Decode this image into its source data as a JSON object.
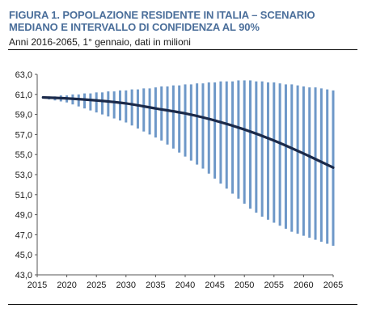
{
  "header": {
    "title": "FIGURA 1. POPOLAZIONE RESIDENTE IN ITALIA – SCENARIO MEDIANO E INTERVALLO DI CONFIDENZA AL 90%",
    "subtitle": "Anni 2016-2065, 1° gennaio, dati in milioni"
  },
  "colors": {
    "median_line": "#1b2a4a",
    "interval_bar": "#6e98c8",
    "title_text": "#4a6e9a"
  },
  "chart_data": {
    "type": "line",
    "title": "FIGURA 1. POPOLAZIONE RESIDENTE IN ITALIA – SCENARIO MEDIANO E INTERVALLO DI CONFIDENZA AL 90%",
    "subtitle": "Anni 2016-2065, 1° gennaio, dati in milioni",
    "xlabel": "",
    "ylabel": "",
    "xlim": [
      2015,
      2065
    ],
    "ylim": [
      43.0,
      63.0
    ],
    "x_ticks": [
      "2015",
      "2020",
      "2025",
      "2030",
      "2035",
      "2040",
      "2045",
      "2050",
      "2055",
      "2060",
      "2065"
    ],
    "y_ticks": [
      "43,0",
      "45,0",
      "47,0",
      "49,0",
      "51,0",
      "53,0",
      "55,0",
      "57,0",
      "59,0",
      "61,0",
      "63,0"
    ],
    "grid": false,
    "legend": "none",
    "series": [
      {
        "kind": "line",
        "x": [
          2016,
          2020,
          2025,
          2030,
          2035,
          2040,
          2045,
          2050,
          2055,
          2060,
          2065
        ],
        "values": [
          60.7,
          60.6,
          60.4,
          60.1,
          59.6,
          59.1,
          58.4,
          57.5,
          56.4,
          55.1,
          53.7
        ]
      },
      {
        "kind": "interval",
        "x": [
          2016,
          2017,
          2018,
          2019,
          2020,
          2021,
          2022,
          2023,
          2024,
          2025,
          2026,
          2027,
          2028,
          2029,
          2030,
          2031,
          2032,
          2033,
          2034,
          2035,
          2036,
          2037,
          2038,
          2039,
          2040,
          2041,
          2042,
          2043,
          2044,
          2045,
          2046,
          2047,
          2048,
          2049,
          2050,
          2051,
          2052,
          2053,
          2054,
          2055,
          2056,
          2057,
          2058,
          2059,
          2060,
          2061,
          2062,
          2063,
          2064,
          2065
        ],
        "low": [
          60.6,
          60.5,
          60.4,
          60.3,
          60.2,
          60.0,
          59.8,
          59.6,
          59.4,
          59.2,
          59.0,
          58.8,
          58.6,
          58.4,
          58.2,
          57.9,
          57.6,
          57.3,
          57.0,
          56.7,
          56.4,
          56.0,
          55.6,
          55.2,
          54.8,
          54.4,
          54.0,
          53.6,
          53.1,
          52.6,
          52.1,
          51.6,
          51.1,
          50.6,
          50.1,
          49.6,
          49.2,
          48.8,
          48.5,
          48.2,
          47.9,
          47.6,
          47.3,
          47.1,
          46.9,
          46.7,
          46.5,
          46.3,
          46.1,
          45.9
        ],
        "high": [
          60.8,
          60.8,
          60.8,
          60.9,
          60.9,
          61.0,
          61.0,
          61.1,
          61.1,
          61.2,
          61.2,
          61.3,
          61.3,
          61.4,
          61.4,
          61.5,
          61.5,
          61.6,
          61.6,
          61.7,
          61.8,
          61.8,
          61.9,
          61.9,
          62.0,
          62.0,
          62.1,
          62.1,
          62.2,
          62.2,
          62.3,
          62.3,
          62.3,
          62.4,
          62.4,
          62.4,
          62.3,
          62.3,
          62.2,
          62.2,
          62.1,
          62.0,
          62.0,
          61.9,
          61.8,
          61.7,
          61.7,
          61.6,
          61.5,
          61.4
        ]
      }
    ]
  }
}
